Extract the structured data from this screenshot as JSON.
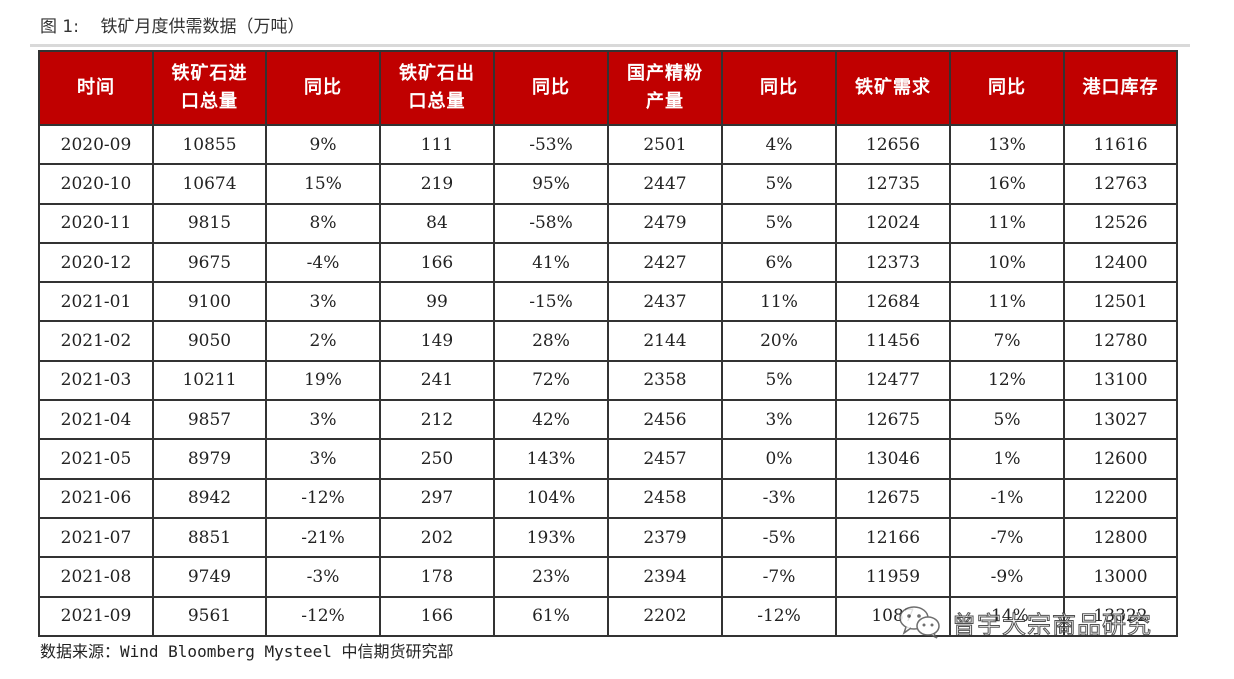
{
  "title": "图 1:    铁矿月度供需数据（万吨）",
  "table": {
    "headers": [
      "时间",
      "铁矿石进\n口总量",
      "同比",
      "铁矿石出\n口总量",
      "同比",
      "国产精粉\n产量",
      "同比",
      "铁矿需求",
      "同比",
      "港口库存"
    ],
    "rows": [
      [
        "2020-09",
        "10855",
        "9%",
        "111",
        "-53%",
        "2501",
        "4%",
        "12656",
        "13%",
        "11616"
      ],
      [
        "2020-10",
        "10674",
        "15%",
        "219",
        "95%",
        "2447",
        "5%",
        "12735",
        "16%",
        "12763"
      ],
      [
        "2020-11",
        "9815",
        "8%",
        "84",
        "-58%",
        "2479",
        "5%",
        "12024",
        "11%",
        "12526"
      ],
      [
        "2020-12",
        "9675",
        "-4%",
        "166",
        "41%",
        "2427",
        "6%",
        "12373",
        "10%",
        "12400"
      ],
      [
        "2021-01",
        "9100",
        "3%",
        "99",
        "-15%",
        "2437",
        "11%",
        "12684",
        "11%",
        "12501"
      ],
      [
        "2021-02",
        "9050",
        "2%",
        "149",
        "28%",
        "2144",
        "20%",
        "11456",
        "7%",
        "12780"
      ],
      [
        "2021-03",
        "10211",
        "19%",
        "241",
        "72%",
        "2358",
        "5%",
        "12477",
        "12%",
        "13100"
      ],
      [
        "2021-04",
        "9857",
        "3%",
        "212",
        "42%",
        "2456",
        "3%",
        "12675",
        "5%",
        "13027"
      ],
      [
        "2021-05",
        "8979",
        "3%",
        "250",
        "143%",
        "2457",
        "0%",
        "13046",
        "1%",
        "12600"
      ],
      [
        "2021-06",
        "8942",
        "-12%",
        "297",
        "104%",
        "2458",
        "-3%",
        "12675",
        "-1%",
        "12200"
      ],
      [
        "2021-07",
        "8851",
        "-21%",
        "202",
        "193%",
        "2379",
        "-5%",
        "12166",
        "-7%",
        "12800"
      ],
      [
        "2021-08",
        "9749",
        "-3%",
        "178",
        "23%",
        "2394",
        "-7%",
        "11959",
        "-9%",
        "13000"
      ],
      [
        "2021-09",
        "9561",
        "-12%",
        "166",
        "61%",
        "2202",
        "-12%",
        "1087",
        "-14%",
        "13322"
      ]
    ]
  },
  "source": "数据来源：Wind Bloomberg Mysteel 中信期货研究部",
  "watermark": {
    "icon": "wechat-icon",
    "text": "曾宇大宗商品研究"
  },
  "colors": {
    "header_bg": "#c00000",
    "header_text": "#ffffff",
    "border": "#333333"
  }
}
